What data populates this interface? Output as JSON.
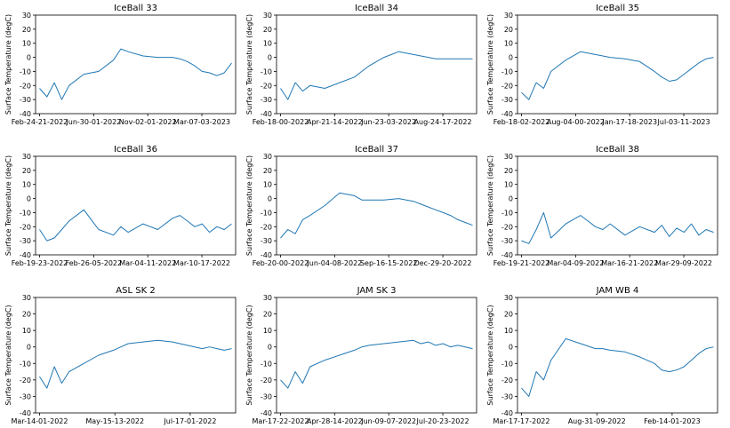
{
  "figure": {
    "series_color": "#1f77b4",
    "ylabel": "Surface Temperature (degC)"
  },
  "chart_data": [
    {
      "type": "line",
      "title": "IceBall 33",
      "ylabel": "Surface Temperature (degC)",
      "ylim": [
        -40,
        30
      ],
      "yticks": [
        -40,
        -30,
        -20,
        -10,
        0,
        10,
        20,
        30
      ],
      "xticks": [
        "Feb-24-21-2022",
        "Jun-30-01-2022",
        "Nov-02-01-2022",
        "Mar-07-03-2023"
      ],
      "grid": false,
      "series": [
        {
          "x": [
            0,
            0.5,
            1,
            1.5,
            2,
            3,
            4,
            5,
            5.5,
            6,
            7,
            8,
            9,
            9.5,
            10,
            10.5,
            11,
            11.5,
            12,
            12.5,
            13
          ],
          "y": [
            -22,
            -28,
            -18,
            -30,
            -20,
            -12,
            -10,
            -2,
            6,
            4,
            1,
            0,
            0,
            -1,
            -3,
            -6,
            -10,
            -11,
            -13,
            -11,
            -4
          ]
        }
      ]
    },
    {
      "type": "line",
      "title": "IceBall 34",
      "ylabel": "Surface Temperature (degC)",
      "ylim": [
        -40,
        30
      ],
      "yticks": [
        -40,
        -30,
        -20,
        -10,
        0,
        10,
        20,
        30
      ],
      "xticks": [
        "Feb-18-00-2022",
        "Apr-21-14-2022",
        "Jun-23-03-2022",
        "Aug-24-17-2022"
      ],
      "grid": false,
      "series": [
        {
          "x": [
            0,
            0.5,
            1,
            1.5,
            2,
            3,
            4,
            5,
            5.5,
            6,
            7,
            8,
            9,
            9.5,
            10,
            10.5,
            11,
            11.5,
            12,
            12.5,
            13
          ],
          "y": [
            -22,
            -30,
            -18,
            -24,
            -20,
            -22,
            -18,
            -14,
            -10,
            -6,
            0,
            4,
            2,
            1,
            0,
            -1,
            -1,
            -1,
            -1,
            -1,
            -1
          ]
        }
      ]
    },
    {
      "type": "line",
      "title": "IceBall 35",
      "ylabel": "Surface Temperature (degC)",
      "ylim": [
        -40,
        30
      ],
      "yticks": [
        -40,
        -30,
        -20,
        -10,
        0,
        10,
        20,
        30
      ],
      "xticks": [
        "Feb-18-02-2022",
        "Aug-04-00-2022",
        "Jan-17-18-2023",
        "Jul-03-11-2023"
      ],
      "grid": false,
      "series": [
        {
          "x": [
            0,
            0.5,
            1,
            1.5,
            2,
            3,
            4,
            5,
            5.5,
            6,
            7,
            8,
            9,
            9.5,
            10,
            10.5,
            11,
            11.5,
            12,
            12.5,
            13
          ],
          "y": [
            -25,
            -30,
            -18,
            -22,
            -10,
            -2,
            4,
            2,
            1,
            0,
            -1,
            -3,
            -10,
            -14,
            -17,
            -16,
            -12,
            -8,
            -4,
            -1,
            0
          ]
        }
      ]
    },
    {
      "type": "line",
      "title": "IceBall 36",
      "ylabel": "Surface Temperature (degC)",
      "ylim": [
        -40,
        30
      ],
      "yticks": [
        -40,
        -30,
        -20,
        -10,
        0,
        10,
        20,
        30
      ],
      "xticks": [
        "Feb-19-23-2022",
        "Feb-26-05-2022",
        "Mar-04-11-2022",
        "Mar-10-17-2022"
      ],
      "grid": false,
      "series": [
        {
          "x": [
            0,
            0.5,
            1,
            1.5,
            2,
            3,
            4,
            5,
            5.5,
            6,
            7,
            8,
            9,
            9.5,
            10,
            10.5,
            11,
            11.5,
            12,
            12.5,
            13
          ],
          "y": [
            -22,
            -30,
            -28,
            -22,
            -16,
            -8,
            -22,
            -26,
            -20,
            -24,
            -18,
            -22,
            -14,
            -12,
            -16,
            -20,
            -18,
            -24,
            -20,
            -22,
            -18
          ]
        }
      ]
    },
    {
      "type": "line",
      "title": "IceBall 37",
      "ylabel": "Surface Temperature (degC)",
      "ylim": [
        -40,
        30
      ],
      "yticks": [
        -40,
        -30,
        -20,
        -10,
        0,
        10,
        20,
        30
      ],
      "xticks": [
        "Feb-20-00-2022",
        "Jun-04-08-2022",
        "Sep-16-15-2022",
        "Dec-29-20-2022"
      ],
      "grid": false,
      "series": [
        {
          "x": [
            0,
            0.5,
            1,
            1.5,
            2,
            3,
            4,
            5,
            5.5,
            6,
            7,
            8,
            9,
            9.5,
            10,
            10.5,
            11,
            11.5,
            12,
            12.5,
            13
          ],
          "y": [
            -28,
            -22,
            -25,
            -15,
            -12,
            -5,
            4,
            2,
            -1,
            -1,
            -1,
            0,
            -2,
            -4,
            -6,
            -8,
            -10,
            -12,
            -15,
            -17,
            -19
          ]
        }
      ]
    },
    {
      "type": "line",
      "title": "IceBall 38",
      "ylabel": "Surface Temperature (degC)",
      "ylim": [
        -40,
        30
      ],
      "yticks": [
        -40,
        -30,
        -20,
        -10,
        0,
        10,
        20,
        30
      ],
      "xticks": [
        "Feb-19-21-2022",
        "Mar-04-09-2022",
        "Mar-16-21-2022",
        "Mar-29-09-2022"
      ],
      "grid": false,
      "series": [
        {
          "x": [
            0,
            0.5,
            1,
            1.5,
            2,
            3,
            4,
            5,
            5.5,
            6,
            7,
            8,
            9,
            9.5,
            10,
            10.5,
            11,
            11.5,
            12,
            12.5,
            13
          ],
          "y": [
            -30,
            -32,
            -22,
            -10,
            -28,
            -18,
            -12,
            -20,
            -22,
            -18,
            -26,
            -20,
            -24,
            -19,
            -27,
            -21,
            -24,
            -18,
            -26,
            -22,
            -24
          ]
        }
      ]
    },
    {
      "type": "line",
      "title": "ASL SK 2",
      "ylabel": "Surface Temperature (degC)",
      "ylim": [
        -40,
        30
      ],
      "yticks": [
        -40,
        -30,
        -20,
        -10,
        0,
        10,
        20,
        30
      ],
      "xticks": [
        "Mar-14-01-2022",
        "May-15-13-2022",
        "Jul-17-01-2022"
      ],
      "grid": false,
      "series": [
        {
          "x": [
            0,
            0.5,
            1,
            1.5,
            2,
            3,
            4,
            5,
            5.5,
            6,
            7,
            8,
            9,
            9.5,
            10,
            10.5,
            11,
            11.5,
            12,
            12.5,
            13
          ],
          "y": [
            -18,
            -25,
            -12,
            -22,
            -15,
            -10,
            -5,
            -2,
            0,
            2,
            3,
            4,
            3,
            2,
            1,
            0,
            -1,
            0,
            -1,
            -2,
            -1
          ]
        }
      ]
    },
    {
      "type": "line",
      "title": "JAM SK 3",
      "ylabel": "Surface Temperature (degC)",
      "ylim": [
        -40,
        30
      ],
      "yticks": [
        -40,
        -30,
        -20,
        -10,
        0,
        10,
        20,
        30
      ],
      "xticks": [
        "Mar-17-22-2022",
        "Apr-28-14-2022",
        "Jun-09-07-2022",
        "Jul-20-23-2022"
      ],
      "grid": false,
      "series": [
        {
          "x": [
            0,
            0.5,
            1,
            1.5,
            2,
            3,
            4,
            5,
            5.5,
            6,
            7,
            8,
            9,
            9.5,
            10,
            10.5,
            11,
            11.5,
            12,
            12.5,
            13
          ],
          "y": [
            -20,
            -25,
            -15,
            -22,
            -12,
            -8,
            -5,
            -2,
            0,
            1,
            2,
            3,
            4,
            2,
            3,
            1,
            2,
            0,
            1,
            0,
            -1
          ]
        }
      ]
    },
    {
      "type": "line",
      "title": "JAM WB 4",
      "ylabel": "Surface Temperature (degC)",
      "ylim": [
        -40,
        30
      ],
      "yticks": [
        -40,
        -30,
        -20,
        -10,
        0,
        10,
        20,
        30
      ],
      "xticks": [
        "Mar-17-17-2022",
        "Aug-31-09-2022",
        "Feb-14-01-2023"
      ],
      "grid": false,
      "series": [
        {
          "x": [
            0,
            0.5,
            1,
            1.5,
            2,
            3,
            4,
            5,
            5.5,
            6,
            7,
            8,
            9,
            9.5,
            10,
            10.5,
            11,
            11.5,
            12,
            12.5,
            13
          ],
          "y": [
            -25,
            -30,
            -15,
            -20,
            -8,
            5,
            2,
            -1,
            -1,
            -2,
            -3,
            -6,
            -10,
            -14,
            -15,
            -14,
            -12,
            -8,
            -4,
            -1,
            0
          ]
        }
      ]
    }
  ]
}
